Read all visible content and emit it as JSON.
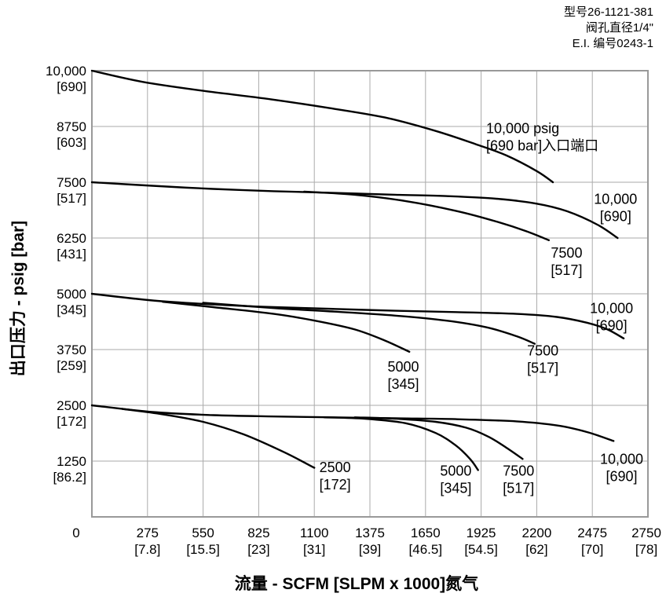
{
  "model_info": [
    "型号26-1121-381",
    "阀孔直径1/4\"",
    "E.I. 编号0243-1"
  ],
  "chart_data": {
    "type": "line",
    "xlabel": "流量 - SCFM [SLPM x 1000]氮气",
    "ylabel": "出口压力 - psig [bar]",
    "xlim": [
      0,
      2750
    ],
    "ylim": [
      0,
      10000
    ],
    "grid": true,
    "x_ticks": [
      {
        "v": 0,
        "l1": "0",
        "l2": ""
      },
      {
        "v": 275,
        "l1": "275",
        "l2": "[7.8]"
      },
      {
        "v": 550,
        "l1": "550",
        "l2": "[15.5]"
      },
      {
        "v": 825,
        "l1": "825",
        "l2": "[23]"
      },
      {
        "v": 1100,
        "l1": "1100",
        "l2": "[31]"
      },
      {
        "v": 1375,
        "l1": "1375",
        "l2": "[39]"
      },
      {
        "v": 1650,
        "l1": "1650",
        "l2": "[46.5]"
      },
      {
        "v": 1925,
        "l1": "1925",
        "l2": "[54.5]"
      },
      {
        "v": 2200,
        "l1": "2200",
        "l2": "[62]"
      },
      {
        "v": 2475,
        "l1": "2475",
        "l2": "[70]"
      },
      {
        "v": 2750,
        "l1": "2750",
        "l2": "[78]"
      }
    ],
    "y_ticks": [
      {
        "v": 10000,
        "l1": "10,000",
        "l2": "[690]"
      },
      {
        "v": 8750,
        "l1": "8750",
        "l2": "[603]"
      },
      {
        "v": 7500,
        "l1": "7500",
        "l2": "[517]"
      },
      {
        "v": 6250,
        "l1": "6250",
        "l2": "[431]"
      },
      {
        "v": 5000,
        "l1": "5000",
        "l2": "[345]"
      },
      {
        "v": 3750,
        "l1": "3750",
        "l2": "[259]"
      },
      {
        "v": 2500,
        "l1": "2500",
        "l2": "[172]"
      },
      {
        "v": 1250,
        "l1": "1250",
        "l2": "[86.2]"
      }
    ],
    "series": [
      {
        "group": 10000,
        "name": "10,000 psig [690 bar]入口端口",
        "label_lines": [
          "10,000 psig",
          "[690 bar]入口端口"
        ],
        "label_at": [
          1950,
          8600
        ],
        "label_anchor": "start",
        "points": [
          [
            0,
            10000
          ],
          [
            250,
            9750
          ],
          [
            550,
            9550
          ],
          [
            850,
            9380
          ],
          [
            1150,
            9180
          ],
          [
            1450,
            8950
          ],
          [
            1700,
            8650
          ],
          [
            1900,
            8350
          ],
          [
            2050,
            8100
          ],
          [
            2200,
            7750
          ],
          [
            2280,
            7500
          ]
        ]
      },
      {
        "group": 7500,
        "name": "10,000 [690]",
        "label_lines": [
          "10,000",
          "[690]"
        ],
        "label_at": [
          2590,
          7020
        ],
        "label_anchor": "middle",
        "points": [
          [
            0,
            7500
          ],
          [
            300,
            7420
          ],
          [
            600,
            7350
          ],
          [
            900,
            7300
          ],
          [
            1200,
            7260
          ],
          [
            1500,
            7220
          ],
          [
            1750,
            7190
          ],
          [
            2000,
            7130
          ],
          [
            2200,
            7020
          ],
          [
            2350,
            6850
          ],
          [
            2500,
            6550
          ],
          [
            2600,
            6250
          ]
        ]
      },
      {
        "group": 7500,
        "name": "7500 [517]",
        "label_lines": [
          "7500",
          "[517]"
        ],
        "label_at": [
          2270,
          5810
        ],
        "label_anchor": "start",
        "points": [
          [
            1050,
            7290
          ],
          [
            1300,
            7220
          ],
          [
            1550,
            7080
          ],
          [
            1800,
            6860
          ],
          [
            2000,
            6620
          ],
          [
            2150,
            6400
          ],
          [
            2260,
            6200
          ]
        ]
      },
      {
        "group": 5000,
        "name": "10,000 [690]",
        "label_lines": [
          "10,000",
          "[690]"
        ],
        "label_at": [
          2570,
          4570
        ],
        "label_anchor": "middle",
        "points": [
          [
            0,
            5000
          ],
          [
            300,
            4850
          ],
          [
            600,
            4760
          ],
          [
            900,
            4700
          ],
          [
            1200,
            4660
          ],
          [
            1500,
            4620
          ],
          [
            1800,
            4590
          ],
          [
            2100,
            4550
          ],
          [
            2300,
            4480
          ],
          [
            2450,
            4350
          ],
          [
            2550,
            4200
          ],
          [
            2630,
            4000
          ]
        ]
      },
      {
        "group": 5000,
        "name": "7500 [517]",
        "label_lines": [
          "7500",
          "[517]"
        ],
        "label_at": [
          2230,
          3620
        ],
        "label_anchor": "middle",
        "points": [
          [
            550,
            4800
          ],
          [
            900,
            4680
          ],
          [
            1200,
            4600
          ],
          [
            1500,
            4510
          ],
          [
            1750,
            4400
          ],
          [
            1950,
            4250
          ],
          [
            2100,
            4050
          ],
          [
            2190,
            3880
          ]
        ]
      },
      {
        "group": 5000,
        "name": "5000 [345]",
        "label_lines": [
          "5000",
          "[345]"
        ],
        "label_at": [
          1540,
          3260
        ],
        "label_anchor": "middle",
        "points": [
          [
            350,
            4820
          ],
          [
            600,
            4700
          ],
          [
            900,
            4550
          ],
          [
            1100,
            4400
          ],
          [
            1300,
            4200
          ],
          [
            1450,
            3950
          ],
          [
            1570,
            3700
          ]
        ]
      },
      {
        "group": 2500,
        "name": "10,000 [690]",
        "label_lines": [
          "10,000",
          "[690]"
        ],
        "label_at": [
          2620,
          1190
        ],
        "label_anchor": "middle",
        "points": [
          [
            0,
            2500
          ],
          [
            300,
            2350
          ],
          [
            600,
            2280
          ],
          [
            900,
            2250
          ],
          [
            1200,
            2230
          ],
          [
            1500,
            2210
          ],
          [
            1800,
            2190
          ],
          [
            2100,
            2140
          ],
          [
            2300,
            2050
          ],
          [
            2450,
            1900
          ],
          [
            2580,
            1700
          ]
        ]
      },
      {
        "group": 2500,
        "name": "7500 [517]",
        "label_lines": [
          "7500",
          "[517]"
        ],
        "label_at": [
          2110,
          920
        ],
        "label_anchor": "middle",
        "points": [
          [
            1300,
            2230
          ],
          [
            1500,
            2200
          ],
          [
            1700,
            2130
          ],
          [
            1850,
            2000
          ],
          [
            1960,
            1800
          ],
          [
            2050,
            1550
          ],
          [
            2130,
            1300
          ]
        ]
      },
      {
        "group": 2500,
        "name": "5000 [345]",
        "label_lines": [
          "5000",
          "[345]"
        ],
        "label_at": [
          1800,
          920
        ],
        "label_anchor": "middle",
        "points": [
          [
            1150,
            2230
          ],
          [
            1350,
            2200
          ],
          [
            1550,
            2100
          ],
          [
            1700,
            1880
          ],
          [
            1800,
            1600
          ],
          [
            1870,
            1300
          ],
          [
            1910,
            1050
          ]
        ]
      },
      {
        "group": 2500,
        "name": "2500 [172]",
        "label_lines": [
          "2500",
          "[172]"
        ],
        "label_at": [
          1125,
          1000
        ],
        "label_anchor": "start",
        "points": [
          [
            150,
            2420
          ],
          [
            350,
            2300
          ],
          [
            550,
            2130
          ],
          [
            750,
            1850
          ],
          [
            950,
            1450
          ],
          [
            1100,
            1100
          ]
        ]
      }
    ],
    "colors": {
      "line": "#000000",
      "grid": "#aaaaaa",
      "frame": "#999999"
    }
  }
}
